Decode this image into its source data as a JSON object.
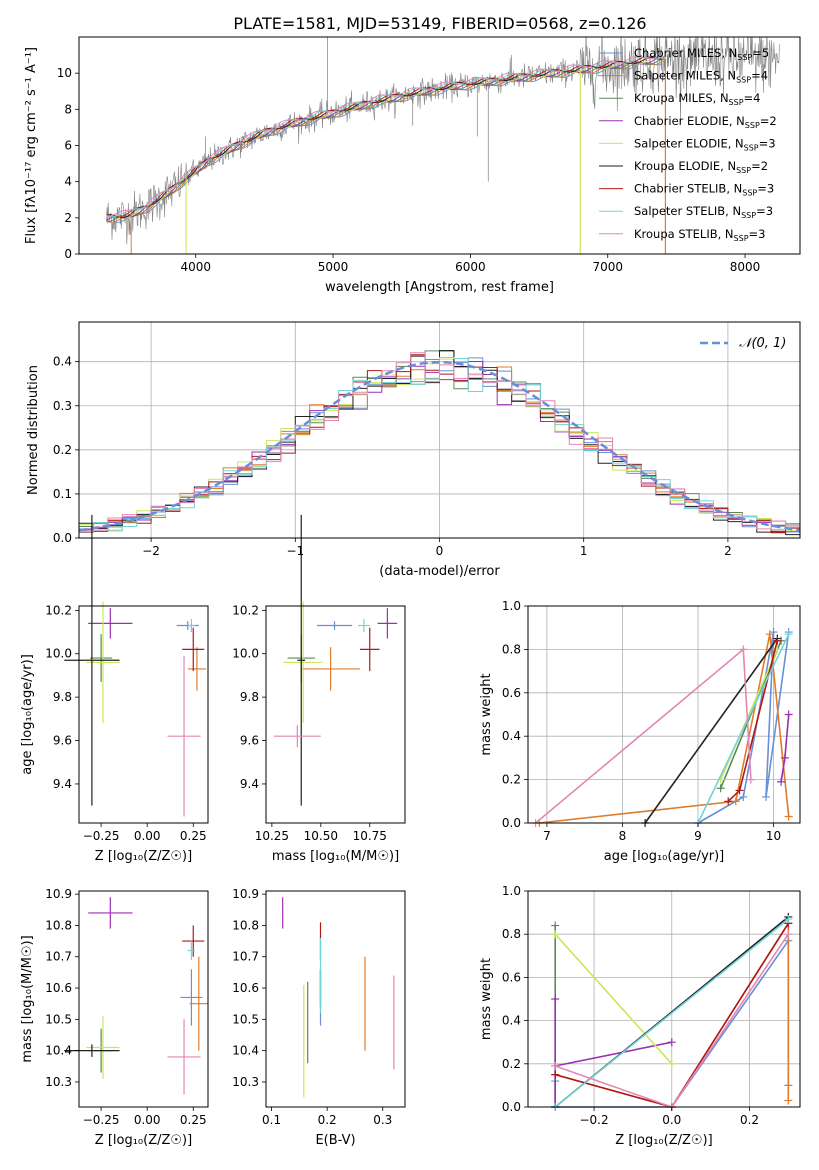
{
  "figure_title": "PLATE=1581, MJD=53149, FIBERID=0568, z=0.126",
  "colors": {
    "model_colors": [
      "#6a8fd8",
      "#e07b2a",
      "#5a8a5a",
      "#9b30b0",
      "#cce65a",
      "#222222",
      "#b01818",
      "#72d3d8",
      "#e586b4"
    ],
    "data_color": "#808080",
    "normal_color": "#6a8fd8",
    "grid": "#b0b0b0"
  },
  "chart_data": [
    {
      "type": "line",
      "title": "PLATE=1581, MJD=53149, FIBERID=0568, z=0.126",
      "xlabel": "wavelength [Angstrom, rest frame]",
      "ylabel": "Flux [fλ10⁻¹⁷ erg cm⁻² s⁻¹ A⁻¹]",
      "xlim": [
        3150,
        8400
      ],
      "ylim": [
        0,
        12
      ],
      "xticks": [
        4000,
        5000,
        6000,
        7000,
        8000
      ],
      "yticks": [
        0,
        2,
        4,
        6,
        8,
        10
      ],
      "grid": false,
      "legend_position": "top-right",
      "continuum": {
        "x": [
          3350,
          3500,
          3650,
          3800,
          3950,
          4100,
          4300,
          4500,
          4700,
          4900,
          5100,
          5300,
          5600,
          5900,
          6200,
          6500,
          6800,
          7100,
          7400
        ],
        "y": [
          2.0,
          2.1,
          2.6,
          3.4,
          4.3,
          5.2,
          6.0,
          6.7,
          7.2,
          7.6,
          8.0,
          8.4,
          8.9,
          9.3,
          9.6,
          9.9,
          10.2,
          10.5,
          10.8
        ]
      },
      "legend": [
        {
          "label": "Chabrier MILES, N",
          "sub": "SSP",
          "suffix": "=5"
        },
        {
          "label": "Salpeter MILES, N",
          "sub": "SSP",
          "suffix": "=4"
        },
        {
          "label": "Kroupa MILES, N",
          "sub": "SSP",
          "suffix": "=4"
        },
        {
          "label": "Chabrier ELODIE, N",
          "sub": "SSP",
          "suffix": "=2"
        },
        {
          "label": "Salpeter ELODIE, N",
          "sub": "SSP",
          "suffix": "=3"
        },
        {
          "label": "Kroupa ELODIE, N",
          "sub": "SSP",
          "suffix": "=2"
        },
        {
          "label": "Chabrier STELIB, N",
          "sub": "SSP",
          "suffix": "=3"
        },
        {
          "label": "Salpeter STELIB, N",
          "sub": "SSP",
          "suffix": "=3"
        },
        {
          "label": "Kroupa STELIB, N",
          "sub": "SSP",
          "suffix": "=3"
        }
      ]
    },
    {
      "type": "step",
      "xlabel": "(data-model)/error",
      "ylabel": "Normed distribution",
      "xlim": [
        -2.5,
        2.5
      ],
      "ylim": [
        0,
        0.49
      ],
      "xticks": [
        -2,
        -1,
        0,
        1,
        2
      ],
      "yticks": [
        0.0,
        0.1,
        0.2,
        0.3,
        0.4
      ],
      "grid": true,
      "legend_position": "top-right",
      "normal_label": "𝒩(0, 1)"
    },
    {
      "type": "errorbar",
      "xlabel": "Z [log₁₀(Z/Z☉)]",
      "ylabel": "age  [log₁₀(age/yr)]",
      "xlim": [
        -0.37,
        0.33
      ],
      "ylim": [
        9.22,
        10.22
      ],
      "xticks": [
        -0.25,
        0.0,
        0.25
      ],
      "yticks": [
        9.4,
        9.6,
        9.8,
        10.0,
        10.2
      ],
      "points": [
        {
          "x": 0.22,
          "y": 10.13,
          "xe": 0.06,
          "ye": 0.02,
          "c": 0
        },
        {
          "x": 0.27,
          "y": 9.93,
          "xe": 0.05,
          "ye": 0.1,
          "c": 1
        },
        {
          "x": -0.25,
          "y": 9.98,
          "xe": 0.06,
          "ye": 0.11,
          "c": 2
        },
        {
          "x": -0.2,
          "y": 10.14,
          "xe": 0.12,
          "ye": 0.07,
          "c": 3
        },
        {
          "x": -0.24,
          "y": 9.96,
          "xe": 0.09,
          "ye": 0.28,
          "c": 4
        },
        {
          "x": -0.3,
          "y": 9.97,
          "xe": 0.15,
          "ye": 0.67,
          "c": 5
        },
        {
          "x": 0.25,
          "y": 10.02,
          "xe": 0.06,
          "ye": 0.1,
          "c": 6
        },
        {
          "x": 0.24,
          "y": 10.13,
          "xe": 0.02,
          "ye": 0.03,
          "c": 7
        },
        {
          "x": 0.2,
          "y": 9.62,
          "xe": 0.09,
          "ye": 0.37,
          "c": 8
        }
      ]
    },
    {
      "type": "errorbar",
      "xlabel": "mass [log₁₀(M/M☉)]",
      "ylabel": "",
      "xlim": [
        10.22,
        10.93
      ],
      "ylim": [
        9.22,
        10.22
      ],
      "xticks": [
        10.25,
        10.5,
        10.75
      ],
      "yticks": [
        9.4,
        9.6,
        9.8,
        10.0,
        10.2
      ],
      "points": [
        {
          "x": 10.57,
          "y": 10.13,
          "xe": 0.09,
          "ye": 0.02,
          "c": 0
        },
        {
          "x": 10.55,
          "y": 9.93,
          "xe": 0.15,
          "ye": 0.1,
          "c": 1
        },
        {
          "x": 10.4,
          "y": 9.98,
          "xe": 0.07,
          "ye": 0.11,
          "c": 2
        },
        {
          "x": 10.84,
          "y": 10.14,
          "xe": 0.05,
          "ye": 0.07,
          "c": 3
        },
        {
          "x": 10.41,
          "y": 9.96,
          "xe": 0.1,
          "ye": 0.28,
          "c": 4
        },
        {
          "x": 10.4,
          "y": 9.97,
          "xe": 0.02,
          "ye": 0.67,
          "c": 5
        },
        {
          "x": 10.75,
          "y": 10.02,
          "xe": 0.05,
          "ye": 0.1,
          "c": 6
        },
        {
          "x": 10.72,
          "y": 10.13,
          "xe": 0.03,
          "ye": 0.03,
          "c": 7
        },
        {
          "x": 10.38,
          "y": 9.62,
          "xe": 0.12,
          "ye": 0.05,
          "c": 8
        }
      ]
    },
    {
      "type": "line",
      "xlabel": "age  [log₁₀(age/yr)]",
      "ylabel": "mass weight",
      "xlim": [
        6.75,
        10.35
      ],
      "ylim": [
        0,
        1
      ],
      "xticks": [
        7,
        8,
        9,
        10
      ],
      "yticks": [
        0.0,
        0.2,
        0.4,
        0.6,
        0.8,
        1.0
      ],
      "grid": true,
      "series": [
        {
          "c": 0,
          "x": [
            9.0,
            9.6,
            10.0,
            9.9,
            10.2
          ],
          "y": [
            0.0,
            0.12,
            0.88,
            0.12,
            0.88
          ]
        },
        {
          "c": 1,
          "x": [
            6.9,
            9.5,
            9.95,
            10.2
          ],
          "y": [
            0.0,
            0.1,
            0.87,
            0.03
          ]
        },
        {
          "c": 2,
          "x": [
            9.3,
            10.1
          ],
          "y": [
            0.16,
            0.84
          ]
        },
        {
          "c": 3,
          "x": [
            10.1,
            10.15,
            10.2
          ],
          "y": [
            0.19,
            0.3,
            0.5
          ]
        },
        {
          "c": 4,
          "x": [
            9.3,
            10.05
          ],
          "y": [
            0.2,
            0.8
          ]
        },
        {
          "c": 5,
          "x": [
            8.3,
            10.05
          ],
          "y": [
            0.0,
            0.85
          ]
        },
        {
          "c": 6,
          "x": [
            9.4,
            9.55,
            10.05
          ],
          "y": [
            0.1,
            0.15,
            0.84
          ]
        },
        {
          "c": 7,
          "x": [
            9.0,
            10.2
          ],
          "y": [
            0.0,
            0.87
          ]
        },
        {
          "c": 8,
          "x": [
            6.85,
            9.6,
            9.7
          ],
          "y": [
            0.0,
            0.8,
            0.2
          ]
        }
      ]
    },
    {
      "type": "errorbar",
      "xlabel": "Z [log₁₀(Z/Z☉)]",
      "ylabel": "mass [log₁₀(M/M☉)]",
      "xlim": [
        -0.37,
        0.33
      ],
      "ylim": [
        10.22,
        10.91
      ],
      "xticks": [
        -0.25,
        0.0,
        0.25
      ],
      "yticks": [
        10.3,
        10.4,
        10.5,
        10.6,
        10.7,
        10.8,
        10.9
      ],
      "points": [
        {
          "x": 0.24,
          "y": 10.57,
          "xe": 0.06,
          "ye": 0.09,
          "c": 0
        },
        {
          "x": 0.28,
          "y": 10.55,
          "xe": 0.05,
          "ye": 0.15,
          "c": 1
        },
        {
          "x": -0.25,
          "y": 10.4,
          "xe": 0.06,
          "ye": 0.07,
          "c": 2
        },
        {
          "x": -0.2,
          "y": 10.84,
          "xe": 0.12,
          "ye": 0.05,
          "c": 3
        },
        {
          "x": -0.24,
          "y": 10.41,
          "xe": 0.09,
          "ye": 0.1,
          "c": 4
        },
        {
          "x": -0.3,
          "y": 10.4,
          "xe": 0.15,
          "ye": 0.02,
          "c": 5
        },
        {
          "x": 0.25,
          "y": 10.75,
          "xe": 0.06,
          "ye": 0.05,
          "c": 6
        },
        {
          "x": 0.24,
          "y": 10.72,
          "xe": 0.02,
          "ye": 0.03,
          "c": 7
        },
        {
          "x": 0.2,
          "y": 10.38,
          "xe": 0.09,
          "ye": 0.12,
          "c": 8
        }
      ]
    },
    {
      "type": "errorbar",
      "xlabel": "E(B-V)",
      "ylabel": "",
      "xlim": [
        0.09,
        0.34
      ],
      "ylim": [
        10.22,
        10.91
      ],
      "xticks": [
        0.1,
        0.2,
        0.3
      ],
      "yticks": [
        10.3,
        10.4,
        10.5,
        10.6,
        10.7,
        10.8,
        10.9
      ],
      "points": [
        {
          "x": 0.188,
          "y": 10.57,
          "ye": 0.09,
          "c": 0
        },
        {
          "x": 0.268,
          "y": 10.55,
          "ye": 0.15,
          "c": 1
        },
        {
          "x": 0.165,
          "y": 10.49,
          "ye": 0.13,
          "c": 2
        },
        {
          "x": 0.12,
          "y": 10.84,
          "ye": 0.05,
          "c": 3
        },
        {
          "x": 0.158,
          "y": 10.43,
          "ye": 0.18,
          "c": 4
        },
        {
          "x": 0.188,
          "y": 10.6,
          "ye": 0.06,
          "c": 5
        },
        {
          "x": 0.188,
          "y": 10.75,
          "ye": 0.06,
          "c": 6
        },
        {
          "x": 0.188,
          "y": 10.64,
          "ye": 0.12,
          "c": 7
        },
        {
          "x": 0.32,
          "y": 10.49,
          "ye": 0.15,
          "c": 8
        }
      ]
    },
    {
      "type": "line",
      "xlabel": "Z [log₁₀(Z/Z☉)]",
      "ylabel": "mass weight",
      "xlim": [
        -0.37,
        0.33
      ],
      "ylim": [
        0,
        1
      ],
      "xticks": [
        -0.2,
        0.0,
        0.2
      ],
      "yticks": [
        0.0,
        0.2,
        0.4,
        0.6,
        0.8,
        1.0
      ],
      "grid": true,
      "series": [
        {
          "c": 0,
          "x": [
            -0.3,
            -0.3,
            0.0,
            0.3,
            0.3
          ],
          "y": [
            0.12,
            0.0,
            0.0,
            0.77,
            0.1
          ]
        },
        {
          "c": 1,
          "x": [
            -0.3,
            0.0,
            0.3,
            0.3
          ],
          "y": [
            0.15,
            0.0,
            0.85,
            0.03
          ]
        },
        {
          "c": 2,
          "x": [
            -0.3,
            -0.3
          ],
          "y": [
            0.0,
            0.84
          ]
        },
        {
          "c": 3,
          "x": [
            -0.3,
            -0.3,
            -0.3,
            0.0
          ],
          "y": [
            0.5,
            0.0,
            0.19,
            0.3
          ]
        },
        {
          "c": 4,
          "x": [
            -0.3,
            0.0
          ],
          "y": [
            0.8,
            0.2
          ]
        },
        {
          "c": 5,
          "x": [
            -0.3,
            0.3
          ],
          "y": [
            0.0,
            0.88
          ]
        },
        {
          "c": 6,
          "x": [
            -0.3,
            0.0,
            0.3
          ],
          "y": [
            0.15,
            0.0,
            0.85
          ]
        },
        {
          "c": 7,
          "x": [
            -0.3,
            0.3
          ],
          "y": [
            0.0,
            0.87
          ]
        },
        {
          "c": 8,
          "x": [
            -0.3,
            0.0,
            0.3
          ],
          "y": [
            0.19,
            0.0,
            0.8
          ]
        }
      ]
    }
  ]
}
